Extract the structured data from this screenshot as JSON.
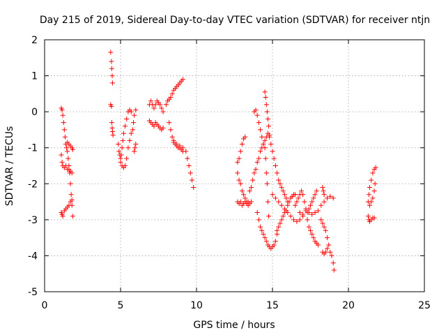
{
  "chart_data": {
    "type": "scatter",
    "title": "Day 215 of 2019, Sidereal Day-to-day VTEC variation (SDTVAR) for receiver ntjn",
    "xlabel": "GPS time / hours",
    "ylabel": "SDTVAR / TECUs",
    "xlim": [
      0,
      25
    ],
    "ylim": [
      -5,
      2
    ],
    "x_ticks": [
      0,
      5,
      10,
      15,
      20,
      25
    ],
    "y_ticks": [
      -5,
      -4,
      -3,
      -2,
      -1,
      0,
      1,
      2
    ],
    "grid": true,
    "marker": "plus",
    "color": "#ff0000",
    "series": [
      {
        "points": [
          [
            1.1,
            0.1
          ],
          [
            1.15,
            0.05
          ],
          [
            1.2,
            -0.1
          ],
          [
            1.25,
            -0.3
          ],
          [
            1.3,
            -0.5
          ],
          [
            1.35,
            -0.7
          ],
          [
            1.4,
            -0.9
          ],
          [
            1.45,
            -1.0
          ],
          [
            1.5,
            -1.1
          ],
          [
            1.55,
            -1.3
          ],
          [
            1.6,
            -1.5
          ],
          [
            1.65,
            -1.7
          ],
          [
            1.7,
            -2.0
          ],
          [
            1.75,
            -2.3
          ],
          [
            1.8,
            -2.6
          ],
          [
            1.85,
            -2.9
          ],
          [
            1.1,
            -1.2
          ],
          [
            1.15,
            -1.4
          ],
          [
            1.2,
            -1.5
          ],
          [
            1.3,
            -1.55
          ],
          [
            1.4,
            -1.5
          ],
          [
            1.5,
            -1.6
          ],
          [
            1.6,
            -1.6
          ],
          [
            1.7,
            -1.65
          ],
          [
            1.8,
            -1.7
          ],
          [
            1.1,
            -2.8
          ],
          [
            1.15,
            -2.85
          ],
          [
            1.2,
            -2.9
          ],
          [
            1.3,
            -2.75
          ],
          [
            1.4,
            -2.7
          ],
          [
            1.5,
            -2.65
          ],
          [
            1.6,
            -2.6
          ],
          [
            1.7,
            -2.5
          ],
          [
            1.8,
            -2.45
          ],
          [
            1.4,
            -0.9
          ],
          [
            1.5,
            -0.85
          ],
          [
            1.6,
            -0.9
          ],
          [
            1.7,
            -0.95
          ],
          [
            1.8,
            -1.0
          ],
          [
            1.85,
            -1.05
          ]
        ]
      },
      {
        "points": [
          [
            4.35,
            1.65
          ],
          [
            4.4,
            1.4
          ],
          [
            4.42,
            1.2
          ],
          [
            4.45,
            1.0
          ],
          [
            4.47,
            0.8
          ],
          [
            4.35,
            0.2
          ],
          [
            4.4,
            0.15
          ],
          [
            4.42,
            -0.3
          ],
          [
            4.45,
            -0.45
          ],
          [
            4.47,
            -0.55
          ],
          [
            4.5,
            -0.65
          ]
        ]
      },
      {
        "points": [
          [
            4.85,
            -0.9
          ],
          [
            4.9,
            -1.1
          ],
          [
            4.95,
            -1.2
          ],
          [
            5.0,
            -1.3
          ],
          [
            5.05,
            -1.2
          ],
          [
            5.1,
            -1.0
          ],
          [
            5.15,
            -0.8
          ],
          [
            5.2,
            -0.6
          ],
          [
            5.3,
            -0.4
          ],
          [
            5.4,
            -0.2
          ],
          [
            5.5,
            0.0
          ],
          [
            5.6,
            0.05
          ],
          [
            5.7,
            0.0
          ],
          [
            5.0,
            -1.4
          ],
          [
            5.1,
            -1.5
          ],
          [
            5.2,
            -1.55
          ],
          [
            5.3,
            -1.5
          ],
          [
            5.4,
            -1.3
          ],
          [
            5.5,
            -1.0
          ],
          [
            5.6,
            -0.8
          ],
          [
            5.7,
            -0.6
          ],
          [
            5.8,
            -0.5
          ],
          [
            5.85,
            -0.3
          ],
          [
            5.9,
            -0.1
          ],
          [
            6.0,
            0.05
          ],
          [
            5.9,
            -1.1
          ],
          [
            5.95,
            -1.0
          ],
          [
            6.0,
            -0.9
          ]
        ]
      },
      {
        "points": [
          [
            6.9,
            0.2
          ],
          [
            7.0,
            0.3
          ],
          [
            7.1,
            0.2
          ],
          [
            7.2,
            0.1
          ],
          [
            7.3,
            0.2
          ],
          [
            7.4,
            0.3
          ],
          [
            7.5,
            0.25
          ],
          [
            7.6,
            0.2
          ],
          [
            7.7,
            0.1
          ],
          [
            7.8,
            0.0
          ],
          [
            6.9,
            -0.25
          ],
          [
            7.0,
            -0.3
          ],
          [
            7.1,
            -0.35
          ],
          [
            7.2,
            -0.4
          ],
          [
            7.3,
            -0.3
          ],
          [
            7.4,
            -0.35
          ],
          [
            7.5,
            -0.4
          ],
          [
            7.6,
            -0.45
          ],
          [
            7.7,
            -0.5
          ],
          [
            7.8,
            -0.45
          ],
          [
            8.0,
            0.2
          ],
          [
            8.1,
            0.3
          ],
          [
            8.2,
            0.35
          ],
          [
            8.3,
            0.4
          ],
          [
            8.4,
            0.5
          ],
          [
            8.5,
            0.6
          ],
          [
            8.6,
            0.65
          ],
          [
            8.7,
            0.7
          ],
          [
            8.8,
            0.75
          ],
          [
            8.9,
            0.8
          ],
          [
            9.0,
            0.85
          ],
          [
            9.1,
            0.9
          ],
          [
            8.2,
            -0.3
          ],
          [
            8.3,
            -0.5
          ],
          [
            8.4,
            -0.7
          ],
          [
            8.5,
            -0.8
          ],
          [
            8.6,
            -0.9
          ],
          [
            8.7,
            -0.95
          ],
          [
            8.8,
            -1.0
          ],
          [
            8.9,
            -1.0
          ],
          [
            9.0,
            -1.05
          ],
          [
            9.1,
            -1.1
          ],
          [
            8.5,
            -0.85
          ],
          [
            8.7,
            -0.9
          ],
          [
            8.9,
            -0.95
          ],
          [
            9.1,
            -1.0
          ],
          [
            9.3,
            -1.1
          ],
          [
            9.4,
            -1.3
          ],
          [
            9.5,
            -1.5
          ],
          [
            9.6,
            -1.7
          ],
          [
            9.7,
            -1.9
          ],
          [
            9.8,
            -2.1
          ]
        ]
      },
      {
        "points": [
          [
            12.7,
            -1.4
          ],
          [
            12.8,
            -1.3
          ],
          [
            12.9,
            -1.1
          ],
          [
            13.0,
            -0.9
          ],
          [
            13.1,
            -0.75
          ],
          [
            13.2,
            -0.7
          ],
          [
            12.7,
            -1.7
          ],
          [
            12.8,
            -1.9
          ],
          [
            12.9,
            -2.0
          ],
          [
            13.0,
            -2.2
          ],
          [
            13.1,
            -2.3
          ],
          [
            13.2,
            -2.4
          ],
          [
            13.3,
            -2.5
          ],
          [
            13.4,
            -2.5
          ],
          [
            12.7,
            -2.5
          ],
          [
            12.8,
            -2.55
          ],
          [
            12.9,
            -2.5
          ],
          [
            13.0,
            -2.6
          ],
          [
            13.1,
            -2.55
          ],
          [
            13.2,
            -2.5
          ],
          [
            13.3,
            -2.55
          ],
          [
            13.4,
            -2.6
          ],
          [
            13.5,
            -2.55
          ],
          [
            13.6,
            -2.5
          ],
          [
            13.5,
            -2.2
          ],
          [
            13.6,
            -2.1
          ],
          [
            13.7,
            -1.9
          ],
          [
            13.8,
            -1.7
          ],
          [
            13.9,
            -1.6
          ],
          [
            14.0,
            -1.4
          ],
          [
            14.1,
            -1.3
          ],
          [
            14.2,
            -1.1
          ],
          [
            14.3,
            -1.0
          ],
          [
            14.4,
            -0.9
          ],
          [
            14.5,
            -0.8
          ],
          [
            14.6,
            -0.7
          ],
          [
            14.7,
            -0.6
          ],
          [
            14.8,
            -0.65
          ],
          [
            13.8,
            0.0
          ],
          [
            13.9,
            0.05
          ],
          [
            14.0,
            -0.1
          ],
          [
            14.1,
            -0.3
          ],
          [
            14.2,
            -0.5
          ],
          [
            14.3,
            -0.7
          ],
          [
            14.4,
            -0.9
          ],
          [
            14.5,
            0.55
          ],
          [
            14.55,
            0.4
          ],
          [
            14.6,
            0.2
          ],
          [
            14.65,
            0.0
          ],
          [
            14.7,
            -0.2
          ],
          [
            14.75,
            -0.4
          ],
          [
            14.5,
            -1.0
          ],
          [
            14.55,
            -1.3
          ],
          [
            14.6,
            -1.7
          ],
          [
            14.65,
            -2.0
          ],
          [
            14.7,
            -2.5
          ],
          [
            14.75,
            -2.9
          ],
          [
            14.8,
            -0.7
          ],
          [
            14.9,
            -0.9
          ],
          [
            15.0,
            -1.1
          ],
          [
            15.1,
            -1.3
          ],
          [
            15.2,
            -1.5
          ],
          [
            15.3,
            -1.7
          ],
          [
            15.4,
            -1.9
          ],
          [
            15.5,
            -2.0
          ],
          [
            15.6,
            -2.1
          ],
          [
            15.7,
            -2.2
          ],
          [
            15.8,
            -2.3
          ],
          [
            15.9,
            -2.4
          ],
          [
            16.0,
            -2.5
          ],
          [
            14.0,
            -2.8
          ],
          [
            14.1,
            -3.0
          ],
          [
            14.2,
            -3.2
          ],
          [
            14.3,
            -3.3
          ],
          [
            14.4,
            -3.4
          ],
          [
            14.5,
            -3.5
          ],
          [
            14.6,
            -3.6
          ],
          [
            14.7,
            -3.7
          ],
          [
            14.8,
            -3.75
          ],
          [
            14.9,
            -3.8
          ],
          [
            15.0,
            -3.75
          ],
          [
            15.1,
            -3.7
          ],
          [
            15.2,
            -3.6
          ],
          [
            15.3,
            -3.4
          ],
          [
            15.3,
            -3.3
          ],
          [
            15.4,
            -3.2
          ],
          [
            15.5,
            -3.1
          ],
          [
            15.6,
            -3.0
          ],
          [
            15.7,
            -2.9
          ],
          [
            15.8,
            -2.8
          ],
          [
            15.9,
            -2.75
          ],
          [
            16.0,
            -2.6
          ],
          [
            16.1,
            -2.5
          ],
          [
            16.2,
            -2.4
          ],
          [
            16.3,
            -2.35
          ],
          [
            16.4,
            -2.3
          ],
          [
            16.5,
            -2.3
          ],
          [
            15.0,
            -2.3
          ],
          [
            15.2,
            -2.4
          ],
          [
            15.4,
            -2.5
          ],
          [
            15.6,
            -2.6
          ],
          [
            15.8,
            -2.7
          ],
          [
            16.0,
            -2.8
          ],
          [
            16.2,
            -2.9
          ],
          [
            16.4,
            -3.0
          ],
          [
            16.6,
            -3.05
          ],
          [
            16.8,
            -3.0
          ],
          [
            17.0,
            -2.9
          ]
        ]
      },
      {
        "points": [
          [
            16.5,
            -2.6
          ],
          [
            16.6,
            -2.5
          ],
          [
            16.7,
            -2.4
          ],
          [
            16.8,
            -2.3
          ],
          [
            16.9,
            -2.2
          ],
          [
            17.0,
            -2.3
          ],
          [
            17.1,
            -2.5
          ],
          [
            17.2,
            -2.7
          ],
          [
            17.3,
            -2.8
          ],
          [
            17.4,
            -2.7
          ],
          [
            17.5,
            -2.6
          ],
          [
            17.6,
            -2.5
          ],
          [
            17.7,
            -2.4
          ],
          [
            17.8,
            -2.3
          ],
          [
            17.9,
            -2.2
          ],
          [
            16.8,
            -2.8
          ],
          [
            17.0,
            -2.85
          ],
          [
            17.2,
            -2.75
          ],
          [
            17.4,
            -2.8
          ],
          [
            17.6,
            -2.85
          ],
          [
            17.8,
            -2.8
          ],
          [
            18.0,
            -2.75
          ],
          [
            18.2,
            -2.6
          ],
          [
            18.4,
            -2.5
          ],
          [
            18.6,
            -2.4
          ],
          [
            18.8,
            -2.35
          ],
          [
            19.0,
            -2.4
          ],
          [
            17.3,
            -3.0
          ],
          [
            17.4,
            -3.2
          ],
          [
            17.5,
            -3.3
          ],
          [
            17.6,
            -3.4
          ],
          [
            17.7,
            -3.5
          ],
          [
            17.8,
            -3.6
          ],
          [
            17.9,
            -3.65
          ],
          [
            18.0,
            -3.7
          ],
          [
            18.3,
            -2.1
          ],
          [
            18.35,
            -2.2
          ],
          [
            18.4,
            -2.3
          ],
          [
            18.2,
            -3.0
          ],
          [
            18.3,
            -3.1
          ],
          [
            18.4,
            -3.2
          ],
          [
            18.5,
            -3.3
          ],
          [
            18.6,
            -3.5
          ],
          [
            18.7,
            -3.7
          ],
          [
            18.8,
            -3.9
          ],
          [
            18.9,
            -4.0
          ],
          [
            19.0,
            -4.2
          ],
          [
            19.05,
            -4.4
          ],
          [
            18.3,
            -3.9
          ],
          [
            18.4,
            -3.95
          ],
          [
            18.5,
            -3.9
          ],
          [
            18.6,
            -3.8
          ]
        ]
      },
      {
        "points": [
          [
            21.3,
            -2.5
          ],
          [
            21.35,
            -2.3
          ],
          [
            21.4,
            -2.1
          ],
          [
            21.5,
            -1.9
          ],
          [
            21.6,
            -1.7
          ],
          [
            21.7,
            -1.6
          ],
          [
            21.8,
            -1.55
          ],
          [
            21.4,
            -2.6
          ],
          [
            21.5,
            -2.5
          ],
          [
            21.6,
            -2.4
          ],
          [
            21.7,
            -2.2
          ],
          [
            21.75,
            -2.0
          ],
          [
            21.3,
            -2.9
          ],
          [
            21.35,
            -3.0
          ],
          [
            21.4,
            -3.05
          ],
          [
            21.5,
            -3.0
          ],
          [
            21.6,
            -2.95
          ],
          [
            21.7,
            -2.95
          ]
        ]
      }
    ]
  }
}
